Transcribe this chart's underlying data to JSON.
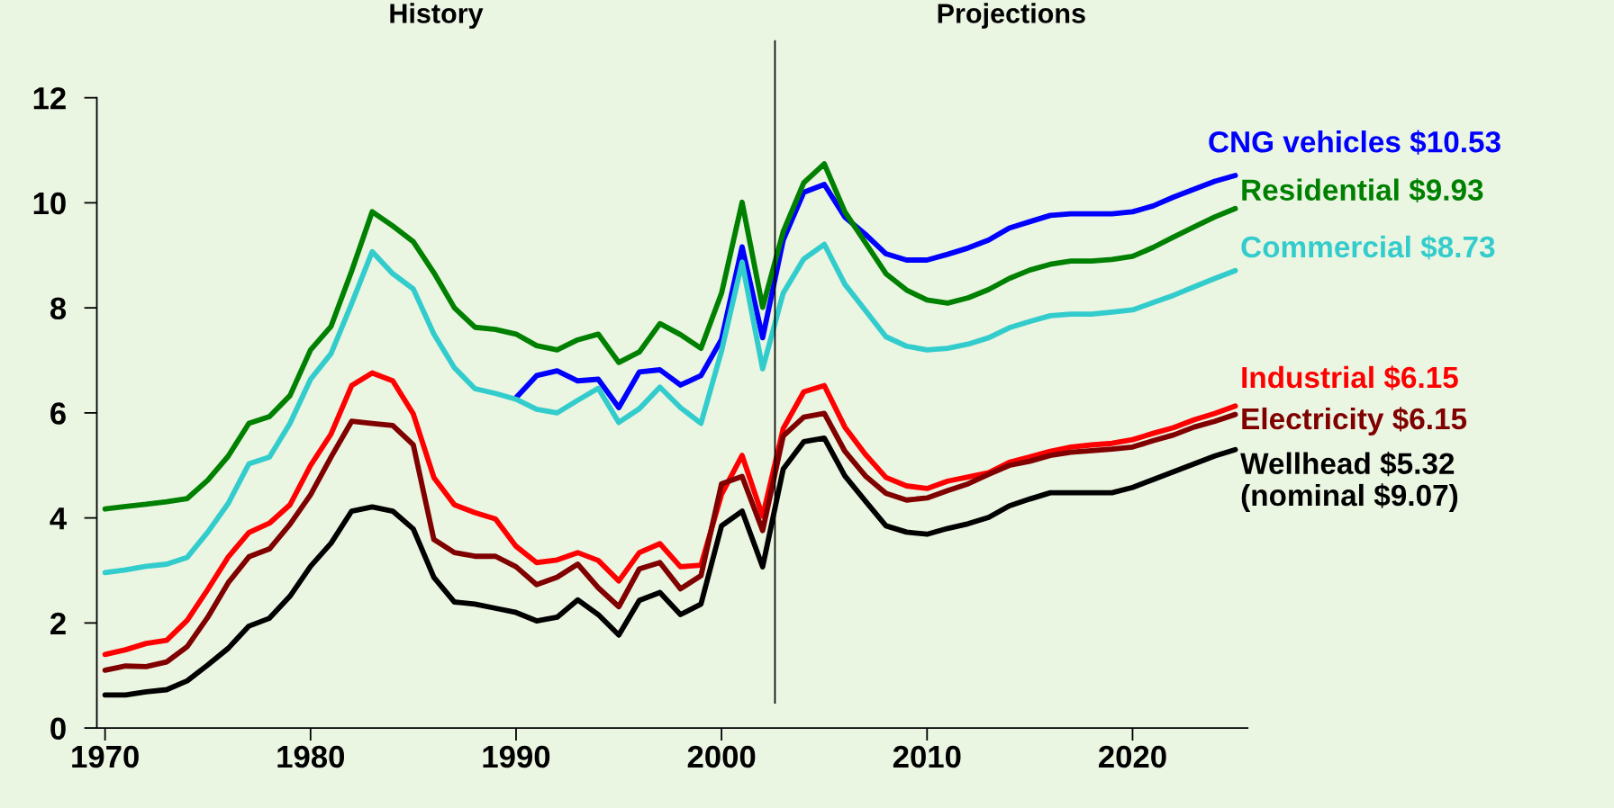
{
  "chart_data": {
    "type": "line",
    "annotations": [
      "History",
      "Projections"
    ],
    "x": [
      1970,
      1971,
      1972,
      1973,
      1974,
      1975,
      1976,
      1977,
      1978,
      1979,
      1980,
      1981,
      1982,
      1983,
      1984,
      1985,
      1986,
      1987,
      1988,
      1989,
      1990,
      1991,
      1992,
      1993,
      1994,
      1995,
      1996,
      1997,
      1998,
      1999,
      2000,
      2001,
      2002,
      2003,
      2004,
      2005,
      2006,
      2007,
      2008,
      2009,
      2010,
      2011,
      2012,
      2013,
      2014,
      2015,
      2016,
      2017,
      2018,
      2019,
      2020,
      2021,
      2022,
      2023,
      2024,
      2025
    ],
    "xlim": [
      1969.6,
      2025.6
    ],
    "xticks": [
      1970,
      1980,
      1990,
      2000,
      2010,
      2020
    ],
    "ylim": [
      0,
      12
    ],
    "yticks": [
      0,
      2,
      4,
      6,
      8,
      10,
      12
    ],
    "grid": false,
    "legend": false,
    "marker": "none",
    "line_style": "solid",
    "ref_lines": [
      {
        "axis": "x",
        "value": 2002.6,
        "color": "#000000"
      }
    ],
    "series": [
      {
        "name": "CNG vehicles $10.53",
        "color": "#0000ff",
        "values": [
          null,
          null,
          null,
          null,
          null,
          null,
          null,
          null,
          null,
          null,
          null,
          null,
          null,
          null,
          null,
          null,
          null,
          null,
          null,
          null,
          6.29,
          6.71,
          6.8,
          6.61,
          6.64,
          6.1,
          6.78,
          6.82,
          6.53,
          6.71,
          7.4,
          9.16,
          7.43,
          9.29,
          10.2,
          10.35,
          9.73,
          9.4,
          9.03,
          8.91,
          8.91,
          9.02,
          9.14,
          9.29,
          9.52,
          9.64,
          9.76,
          9.79,
          9.79,
          9.79,
          9.83,
          9.94,
          10.11,
          10.26,
          10.41,
          10.52
        ]
      },
      {
        "name": "Residential $9.93",
        "color": "#008000",
        "values": [
          4.17,
          4.22,
          4.26,
          4.31,
          4.37,
          4.72,
          5.18,
          5.8,
          5.93,
          6.33,
          7.2,
          7.65,
          8.7,
          9.83,
          9.56,
          9.26,
          8.67,
          8.0,
          7.63,
          7.59,
          7.5,
          7.28,
          7.2,
          7.39,
          7.5,
          6.96,
          7.16,
          7.7,
          7.49,
          7.23,
          8.28,
          10.01,
          8.01,
          9.45,
          10.38,
          10.74,
          9.83,
          9.24,
          8.65,
          8.34,
          8.15,
          8.09,
          8.19,
          8.35,
          8.56,
          8.72,
          8.83,
          8.89,
          8.89,
          8.92,
          8.98,
          9.15,
          9.35,
          9.54,
          9.73,
          9.89
        ]
      },
      {
        "name": "Commercial $8.73",
        "color": "#33cccc",
        "values": [
          2.96,
          3.01,
          3.08,
          3.12,
          3.25,
          3.73,
          4.28,
          5.03,
          5.16,
          5.8,
          6.64,
          7.13,
          8.08,
          9.07,
          8.65,
          8.36,
          7.5,
          6.86,
          6.46,
          6.37,
          6.26,
          6.07,
          6.0,
          6.24,
          6.47,
          5.82,
          6.08,
          6.49,
          6.1,
          5.8,
          7.18,
          8.87,
          6.84,
          8.28,
          8.93,
          9.21,
          8.45,
          7.95,
          7.45,
          7.27,
          7.2,
          7.23,
          7.31,
          7.43,
          7.62,
          7.74,
          7.85,
          7.88,
          7.88,
          7.92,
          7.96,
          8.1,
          8.24,
          8.4,
          8.56,
          8.71
        ]
      },
      {
        "name": "Industrial $6.15",
        "color": "#ff0000",
        "values": [
          1.4,
          1.49,
          1.61,
          1.67,
          2.05,
          2.64,
          3.26,
          3.72,
          3.9,
          4.25,
          5.0,
          5.6,
          6.52,
          6.76,
          6.61,
          5.98,
          4.77,
          4.25,
          4.1,
          3.98,
          3.46,
          3.15,
          3.2,
          3.34,
          3.19,
          2.8,
          3.34,
          3.51,
          3.07,
          3.1,
          4.45,
          5.19,
          4.03,
          5.7,
          6.4,
          6.52,
          5.73,
          5.21,
          4.77,
          4.61,
          4.56,
          4.7,
          4.78,
          4.86,
          5.06,
          5.16,
          5.27,
          5.35,
          5.39,
          5.42,
          5.49,
          5.61,
          5.72,
          5.87,
          5.99,
          6.13
        ]
      },
      {
        "name": "Electricity $6.15",
        "color": "#800000",
        "values": [
          1.1,
          1.18,
          1.17,
          1.26,
          1.55,
          2.11,
          2.77,
          3.26,
          3.41,
          3.88,
          4.44,
          5.16,
          5.84,
          5.8,
          5.76,
          5.39,
          3.59,
          3.34,
          3.27,
          3.27,
          3.07,
          2.73,
          2.87,
          3.12,
          2.67,
          2.31,
          3.03,
          3.15,
          2.65,
          2.9,
          4.65,
          4.79,
          3.76,
          5.56,
          5.92,
          5.99,
          5.27,
          4.8,
          4.47,
          4.34,
          4.38,
          4.52,
          4.65,
          4.83,
          5.0,
          5.08,
          5.19,
          5.25,
          5.28,
          5.31,
          5.35,
          5.47,
          5.58,
          5.73,
          5.84,
          5.97
        ]
      },
      {
        "name": "Wellhead $5.32\n(nominal $9.07)",
        "color": "#000000",
        "values": [
          0.63,
          0.63,
          0.69,
          0.73,
          0.9,
          1.2,
          1.52,
          1.94,
          2.09,
          2.51,
          3.08,
          3.52,
          4.13,
          4.21,
          4.13,
          3.79,
          2.87,
          2.4,
          2.36,
          2.28,
          2.2,
          2.04,
          2.11,
          2.44,
          2.16,
          1.77,
          2.43,
          2.58,
          2.16,
          2.36,
          3.85,
          4.13,
          3.07,
          4.93,
          5.45,
          5.52,
          4.8,
          4.32,
          3.85,
          3.73,
          3.69,
          3.8,
          3.89,
          4.01,
          4.23,
          4.36,
          4.48,
          4.48,
          4.48,
          4.48,
          4.58,
          4.73,
          4.88,
          5.03,
          5.18,
          5.3
        ]
      }
    ]
  }
}
